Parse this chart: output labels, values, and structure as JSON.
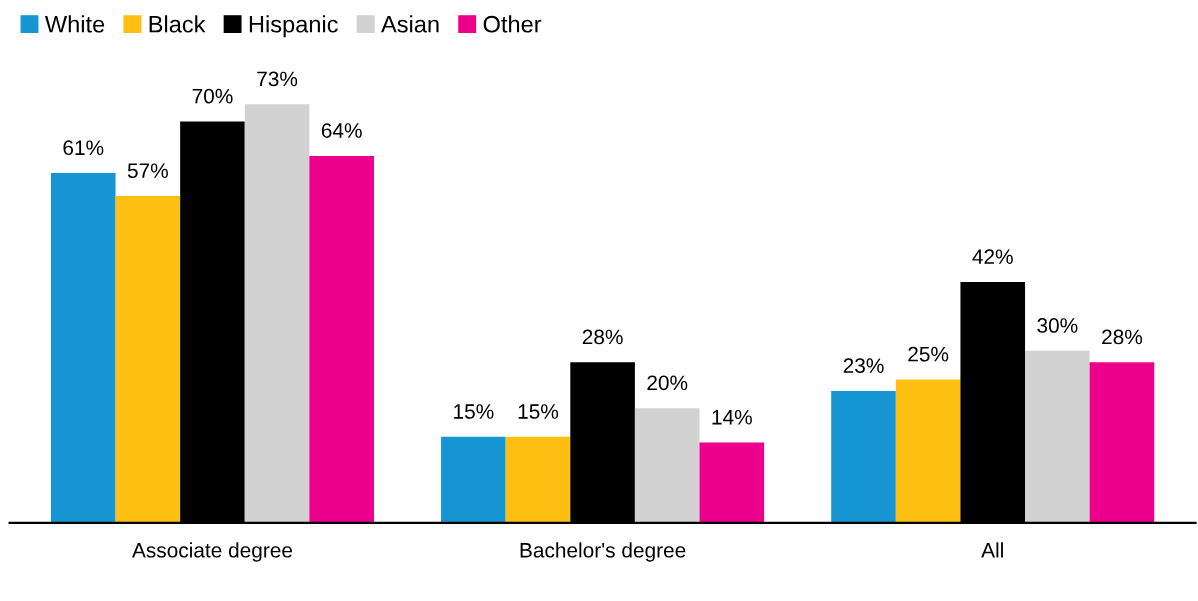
{
  "chart_data": {
    "type": "bar",
    "categories": [
      "Associate degree",
      "Bachelor's degree",
      "All"
    ],
    "series": [
      {
        "name": "White",
        "color": "#1696d2",
        "values": [
          61,
          15,
          23
        ],
        "value_labels": [
          "61%",
          "15%",
          "23%"
        ]
      },
      {
        "name": "Black",
        "color": "#fdbf11",
        "values": [
          57,
          15,
          25
        ],
        "value_labels": [
          "57%",
          "15%",
          "25%"
        ]
      },
      {
        "name": "Hispanic",
        "color": "#000000",
        "values": [
          70,
          28,
          42
        ],
        "value_labels": [
          "70%",
          "28%",
          "42%"
        ]
      },
      {
        "name": "Asian",
        "color": "#d2d2d2",
        "values": [
          73,
          20,
          30
        ],
        "value_labels": [
          "73%",
          "20%",
          "30%"
        ]
      },
      {
        "name": "Other",
        "color": "#ec008b",
        "values": [
          64,
          14,
          28
        ],
        "value_labels": [
          "64%",
          "14%",
          "28%"
        ]
      }
    ],
    "legend": "top left",
    "grid": false
  }
}
